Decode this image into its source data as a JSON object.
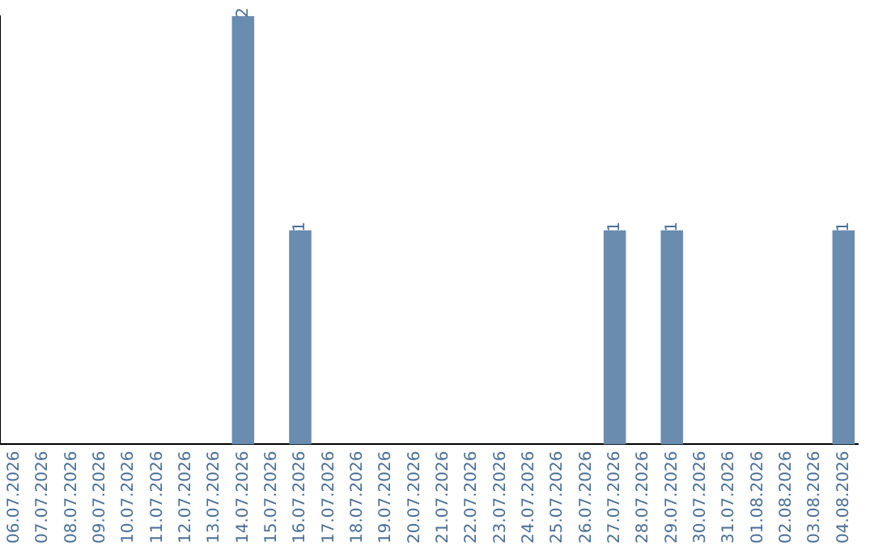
{
  "chart_data": {
    "type": "bar",
    "categories": [
      "06.07.2026",
      "07.07.2026",
      "08.07.2026",
      "09.07.2026",
      "10.07.2026",
      "11.07.2026",
      "12.07.2026",
      "13.07.2026",
      "14.07.2026",
      "15.07.2026",
      "16.07.2026",
      "17.07.2026",
      "18.07.2026",
      "19.07.2026",
      "20.07.2026",
      "21.07.2026",
      "22.07.2026",
      "23.07.2026",
      "24.07.2026",
      "25.07.2026",
      "26.07.2026",
      "27.07.2026",
      "28.07.2026",
      "29.07.2026",
      "30.07.2026",
      "31.07.2026",
      "01.08.2026",
      "02.08.2026",
      "03.08.2026",
      "04.08.2026"
    ],
    "values": [
      0,
      0,
      0,
      0,
      0,
      0,
      0,
      0,
      2,
      0,
      1,
      0,
      0,
      0,
      0,
      0,
      0,
      0,
      0,
      0,
      0,
      1,
      0,
      1,
      0,
      0,
      0,
      0,
      0,
      1
    ],
    "value_labels": [
      null,
      null,
      null,
      null,
      null,
      null,
      null,
      null,
      "2",
      null,
      "1",
      null,
      null,
      null,
      null,
      null,
      null,
      null,
      null,
      null,
      null,
      "1",
      null,
      "1",
      null,
      null,
      null,
      null,
      null,
      "1"
    ],
    "color": "#6a8caf",
    "ylim": [
      0,
      2
    ],
    "grid": false,
    "legend": false,
    "tick_labels": "x"
  }
}
